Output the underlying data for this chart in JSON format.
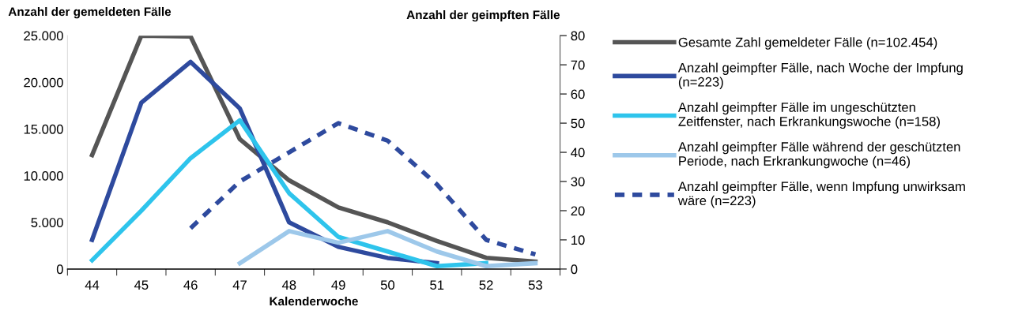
{
  "chart_data": {
    "type": "line",
    "ylabel": "Anzahl der gemeldeten Fälle",
    "y2label": "Anzahl der geimpften Fälle",
    "xlabel": "Kalenderwoche",
    "categories": [
      "44",
      "45",
      "46",
      "47",
      "48",
      "49",
      "50",
      "51",
      "52",
      "53"
    ],
    "ylim": [
      0,
      25000
    ],
    "yticks": [
      0,
      {
        "value": 5000,
        "label": "5.000"
      },
      {
        "value": 10000,
        "label": "10.000"
      },
      {
        "value": 15000,
        "label": "15.000"
      },
      {
        "value": 20000,
        "label": "20.000"
      },
      {
        "value": 25000,
        "label": "25.000"
      }
    ],
    "y2lim": [
      0,
      80
    ],
    "y2ticks": [
      0,
      10,
      20,
      30,
      40,
      50,
      60,
      70,
      80
    ],
    "grid": false,
    "legend": "right",
    "marker": "none",
    "series": [
      {
        "name": "Gesamte Zahl gemeldeter Fälle (n=102.454)",
        "color": "#555555",
        "line_style": "solid",
        "values": [
          12200,
          25000,
          24900,
          13900,
          9500,
          6600,
          5000,
          3000,
          1200,
          800
        ]
      },
      {
        "name": "Anzahl geimpfter Fälle, nach Woche der Impfung\n(n=223)",
        "color": "#2e4a9e",
        "line_style": "solid",
        "axis": "y2",
        "values": [
          10,
          57,
          71,
          55,
          16,
          7.6,
          3.8,
          2,
          null,
          null
        ]
      },
      {
        "name": "Anzahl geimpfter Fälle im ungeschützten\nZeitfenster, nach Erkrankungswoche (n=158)",
        "color": "#2ec4ec",
        "line_style": "solid",
        "axis": "y2",
        "values": [
          3,
          20,
          38,
          51,
          26,
          11,
          6,
          1,
          2,
          null
        ]
      },
      {
        "name": "Anzahl geimpfter Fälle während der geschützten\nPeriode, nach Erkrankungwoche (n=46)",
        "color": "#9dc8ea",
        "line_style": "solid",
        "axis": "y2",
        "values": [
          null,
          null,
          null,
          2,
          13,
          9,
          13,
          6,
          1,
          2
        ]
      },
      {
        "name": "Anzahl geimpfter Fälle, wenn Impfung unwirksam\nwäre (n=223)",
        "color": "#2e4a9e",
        "line_style": "dashed",
        "axis": "y2",
        "values": [
          null,
          null,
          14,
          30,
          40,
          50,
          44,
          29,
          10,
          5
        ]
      }
    ]
  }
}
